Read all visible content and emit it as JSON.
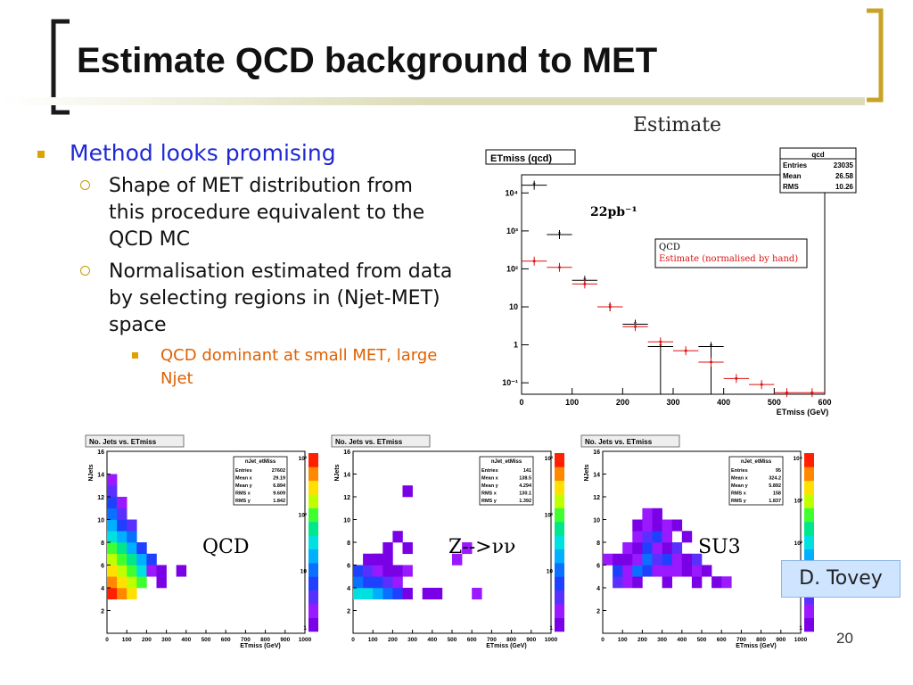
{
  "slide": {
    "title": "Estimate QCD background to MET",
    "page_number": "20",
    "credit": "D. Tovey",
    "estimate_label": "Estimate",
    "bullets": {
      "l1": "Method looks promising",
      "l2a": "Shape of MET distribution from this procedure equivalent to the QCD MC",
      "l2b": "Normalisation estimated from data by selecting regions in (Njet-MET) space",
      "l3": "QCD dominant at small MET, large Njet"
    },
    "colors": {
      "title_bracket_left": "#1a1a1a",
      "title_bracket_right": "#c9a227",
      "accent_bar": "#dcdcb8",
      "bullet_blue": "#1f28d4",
      "sub_orange": "#e06000"
    }
  },
  "chart_data": [
    {
      "type": "scatter",
      "title": "ETmiss  (qcd)",
      "xlabel": "ETmiss (GeV)",
      "ylabel": "",
      "xlim": [
        0,
        600
      ],
      "ylim": [
        0.05,
        30000
      ],
      "yscale": "log",
      "xticks": [
        "0",
        "100",
        "200",
        "300",
        "400",
        "500",
        "600"
      ],
      "yticks": [
        "10⁴",
        "10³",
        "10²",
        "10",
        "1",
        "10⁻¹"
      ],
      "annotation": "22pb⁻¹",
      "stats": {
        "name": "qcd",
        "rows": [
          [
            "Entries",
            "23035"
          ],
          [
            "Mean",
            "26.58"
          ],
          [
            "RMS",
            "10.26"
          ]
        ]
      },
      "legend": [
        "QCD",
        "Estimate (normalised by hand)"
      ],
      "legend_colors": [
        "#000000",
        "#dd1111"
      ],
      "series": [
        {
          "name": "QCD",
          "color": "#000000",
          "points": [
            [
              25,
              16000
            ],
            [
              75,
              800
            ],
            [
              125,
              50
            ],
            [
              175,
              10
            ],
            [
              225,
              3.5
            ],
            [
              275,
              0.9
            ],
            [
              375,
              0.9
            ]
          ]
        },
        {
          "name": "Estimate (normalised by hand)",
          "color": "#dd1111",
          "points": [
            [
              25,
              160
            ],
            [
              75,
              110
            ],
            [
              125,
              40
            ],
            [
              175,
              10
            ],
            [
              225,
              3
            ],
            [
              275,
              1.2
            ],
            [
              325,
              0.7
            ],
            [
              375,
              0.35
            ],
            [
              425,
              0.13
            ],
            [
              475,
              0.09
            ],
            [
              525,
              0.055
            ],
            [
              575,
              0.055
            ]
          ]
        }
      ]
    },
    {
      "type": "heatmap",
      "title": "No. Jets vs. ETmiss",
      "xlabel": "ETmiss (GeV)",
      "ylabel": "NJets",
      "xticks": [
        "0",
        "100",
        "200",
        "300",
        "400",
        "500",
        "600",
        "700",
        "800",
        "900",
        "1000"
      ],
      "yticks": [
        "2",
        "4",
        "6",
        "8",
        "10",
        "12",
        "14",
        "16"
      ],
      "zticks": [
        "1",
        "10",
        "10²",
        "10³"
      ],
      "label": "QCD",
      "stats": {
        "name": "nJet_etMiss",
        "rows": [
          [
            "Entries",
            "27602"
          ],
          [
            "Mean x",
            "29.19"
          ],
          [
            "Mean y",
            "6.894"
          ],
          [
            "RMS x",
            "9.609"
          ],
          [
            "RMS y",
            "1.842"
          ]
        ]
      }
    },
    {
      "type": "heatmap",
      "title": "No. Jets vs. ETmiss",
      "xlabel": "ETmiss (GeV)",
      "ylabel": "NJets",
      "xticks": [
        "0",
        "100",
        "200",
        "300",
        "400",
        "500",
        "600",
        "700",
        "800",
        "900",
        "1000"
      ],
      "yticks": [
        "2",
        "4",
        "6",
        "8",
        "10",
        "12",
        "14",
        "16"
      ],
      "zticks": [
        "1",
        "10",
        "10²",
        "10³"
      ],
      "label": "Z-->νν",
      "stats": {
        "name": "nJet_etMiss",
        "rows": [
          [
            "Entries",
            "141"
          ],
          [
            "Mean x",
            "138.5"
          ],
          [
            "Mean y",
            "4.294"
          ],
          [
            "RMS x",
            "130.1"
          ],
          [
            "RMS y",
            "1.392"
          ]
        ]
      }
    },
    {
      "type": "heatmap",
      "title": "No. Jets vs. ETmiss",
      "xlabel": "ETmiss (GeV)",
      "ylabel": "NJets",
      "xticks": [
        "0",
        "100",
        "200",
        "300",
        "400",
        "500",
        "600",
        "700",
        "800",
        "900",
        "1000"
      ],
      "yticks": [
        "2",
        "4",
        "6",
        "8",
        "10",
        "12",
        "14",
        "16"
      ],
      "zticks": [
        "1",
        "10",
        "10²",
        "10³",
        "10⁴"
      ],
      "label": "SU3",
      "stats": {
        "name": "nJet_etMiss",
        "rows": [
          [
            "Entries",
            "95"
          ],
          [
            "Mean x",
            "324.2"
          ],
          [
            "Mean y",
            "5.892"
          ],
          [
            "RMS x",
            "158"
          ],
          [
            "RMS y",
            "1.837"
          ]
        ]
      }
    }
  ]
}
